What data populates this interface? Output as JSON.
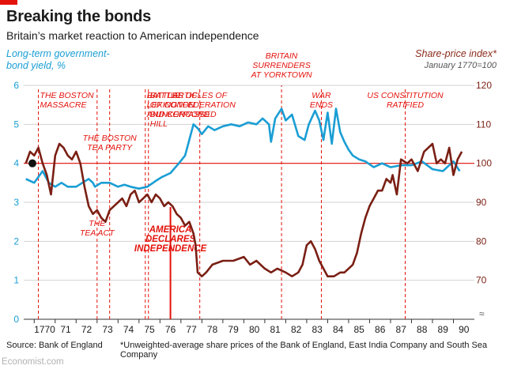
{
  "header": {
    "title": "Breaking the bonds",
    "subtitle": "Britain’s market reaction to American independence"
  },
  "axes": {
    "left_label_line1": "Long-term government-",
    "left_label_line2": "bond yield, %",
    "right_label_line1": "Share-price index*",
    "right_label_line2": "January 1770=100"
  },
  "footer": {
    "source": "Source: Bank of England",
    "footnote": "*Unweighted-average share prices of the Bank of England, East India Company and South Sea Company",
    "logo": "Economist.com"
  },
  "colors": {
    "bond": "#1a9ed4",
    "share": "#7a1f14",
    "event": "#e3120b",
    "grid": "#d2d2d2"
  },
  "chart_data": {
    "type": "line",
    "x_axis": {
      "min": 1769.5,
      "max": 1791.0,
      "ticks": [
        "1770",
        "71",
        "72",
        "73",
        "74",
        "75",
        "76",
        "77",
        "78",
        "79",
        "80",
        "81",
        "82",
        "83",
        "84",
        "85",
        "86",
        "87",
        "88",
        "89",
        "90"
      ]
    },
    "y_left": {
      "min": 0,
      "max": 6,
      "ticks": [
        0,
        1,
        2,
        3,
        4,
        5,
        6
      ]
    },
    "y_right": {
      "min": 60,
      "max": 120,
      "ticks": [
        70,
        80,
        90,
        100,
        110,
        120
      ],
      "baseline": 100,
      "break_marker": true
    },
    "series": [
      {
        "name": "Long-term government-bond yield, %",
        "axis": "left",
        "x": [
          1769.6,
          1770.0,
          1770.4,
          1770.7,
          1771.0,
          1771.3,
          1771.6,
          1772.0,
          1772.3,
          1772.6,
          1772.8,
          1772.9,
          1773.2,
          1773.6,
          1774.0,
          1774.3,
          1774.6,
          1775.0,
          1775.4,
          1775.8,
          1776.1,
          1776.5,
          1776.9,
          1777.2,
          1777.4,
          1777.6,
          1777.8,
          1778.0,
          1778.3,
          1778.6,
          1779.0,
          1779.4,
          1779.8,
          1780.2,
          1780.6,
          1780.9,
          1781.2,
          1781.3,
          1781.5,
          1781.8,
          1782.0,
          1782.3,
          1782.6,
          1782.9,
          1783.1,
          1783.4,
          1783.6,
          1783.8,
          1784.0,
          1784.2,
          1784.4,
          1784.6,
          1784.8,
          1785.0,
          1785.2,
          1785.5,
          1785.8,
          1786.2,
          1786.6,
          1787.0,
          1787.5,
          1788.0,
          1788.5,
          1789.0,
          1789.5,
          1790.0,
          1790.3
        ],
        "values": [
          3.6,
          3.5,
          3.8,
          3.5,
          3.4,
          3.5,
          3.4,
          3.4,
          3.5,
          3.6,
          3.5,
          3.4,
          3.5,
          3.5,
          3.4,
          3.45,
          3.4,
          3.35,
          3.4,
          3.55,
          3.65,
          3.75,
          4.0,
          4.2,
          4.6,
          5.0,
          4.9,
          4.75,
          4.95,
          4.85,
          4.95,
          5.0,
          4.95,
          5.05,
          5.0,
          5.15,
          5.0,
          4.55,
          5.15,
          5.4,
          5.1,
          5.25,
          4.7,
          4.6,
          5.0,
          5.35,
          5.1,
          4.6,
          5.3,
          4.5,
          5.4,
          4.8,
          4.55,
          4.35,
          4.2,
          4.1,
          4.05,
          3.9,
          4.0,
          3.9,
          3.95,
          3.95,
          4.05,
          3.85,
          3.8,
          4.05,
          3.8
        ]
      },
      {
        "name": "Share-price index, January 1770=100",
        "axis": "right",
        "x": [
          1769.6,
          1769.8,
          1770.0,
          1770.2,
          1770.4,
          1770.6,
          1770.8,
          1771.0,
          1771.2,
          1771.4,
          1771.6,
          1771.8,
          1772.0,
          1772.2,
          1772.4,
          1772.6,
          1772.8,
          1773.0,
          1773.2,
          1773.4,
          1773.6,
          1773.8,
          1774.0,
          1774.2,
          1774.4,
          1774.6,
          1774.8,
          1775.0,
          1775.2,
          1775.4,
          1775.6,
          1775.8,
          1776.0,
          1776.2,
          1776.4,
          1776.6,
          1776.8,
          1777.0,
          1777.2,
          1777.4,
          1777.6,
          1777.7,
          1777.8,
          1778.0,
          1778.2,
          1778.5,
          1779.0,
          1779.5,
          1780.0,
          1780.3,
          1780.6,
          1781.0,
          1781.3,
          1781.6,
          1782.0,
          1782.3,
          1782.6,
          1782.8,
          1783.0,
          1783.2,
          1783.4,
          1783.6,
          1783.8,
          1784.0,
          1784.3,
          1784.6,
          1784.8,
          1785.0,
          1785.2,
          1785.4,
          1785.6,
          1785.8,
          1786.0,
          1786.2,
          1786.4,
          1786.6,
          1786.8,
          1787.0,
          1787.1,
          1787.3,
          1787.5,
          1787.8,
          1788.0,
          1788.3,
          1788.6,
          1789.0,
          1789.2,
          1789.4,
          1789.6,
          1789.8,
          1790.0,
          1790.2,
          1790.4
        ],
        "values": [
          100,
          103,
          102,
          104,
          100,
          97,
          92,
          102,
          105,
          104,
          102,
          101,
          103,
          100,
          94,
          89,
          87,
          88,
          86,
          85,
          88,
          89,
          90,
          91,
          89,
          92,
          93,
          90,
          91,
          92,
          90,
          92,
          91,
          89,
          90,
          89,
          87,
          86,
          84,
          85,
          82,
          79,
          72,
          71,
          72,
          74,
          75,
          75,
          76,
          74,
          75,
          73,
          72,
          73,
          72,
          71,
          72,
          74,
          79,
          80,
          78,
          75,
          73,
          71,
          71,
          72,
          72,
          73,
          74,
          77,
          82,
          86,
          89,
          91,
          93,
          93,
          96,
          95,
          97,
          92,
          101,
          100,
          101,
          98,
          103,
          105,
          100,
          101,
          100,
          104,
          97,
          101,
          103
        ]
      }
    ],
    "events": [
      {
        "x": 1770.2,
        "lines": [
          "THE BOSTON",
          "MASSACRE"
        ],
        "pos": "top"
      },
      {
        "x": 1773.0,
        "lines": [
          "THE",
          "TEA ACT"
        ],
        "pos": "low"
      },
      {
        "x": 1773.6,
        "lines": [
          "THE BOSTON",
          "TEA PARTY"
        ],
        "pos": "mid"
      },
      {
        "x": 1775.3,
        "lines": [
          "BATTLES OF",
          "LEXINGTON",
          "AND CONCORD"
        ],
        "pos": "top"
      },
      {
        "x": 1775.45,
        "lines": [
          "BATTLE",
          "OF",
          "BUNKER",
          "HILL"
        ],
        "pos": "top"
      },
      {
        "x": 1776.5,
        "lines": [
          "AMERICA",
          "DECLARES",
          "INDEPENDENCE"
        ],
        "pos": "center",
        "major": true
      },
      {
        "x": 1777.9,
        "lines": [
          "ARTICLES OF",
          "CONFEDERATION",
          "PASSED"
        ],
        "pos": "top"
      },
      {
        "x": 1781.8,
        "lines": [
          "BRITAIN",
          "SURRENDERS",
          "AT YORKTOWN"
        ],
        "pos": "upper"
      },
      {
        "x": 1783.7,
        "lines": [
          "WAR",
          "ENDS"
        ],
        "pos": "top"
      },
      {
        "x": 1787.7,
        "lines": [
          "US CONSTITUTION",
          "RATIFIED"
        ],
        "pos": "top"
      }
    ]
  }
}
